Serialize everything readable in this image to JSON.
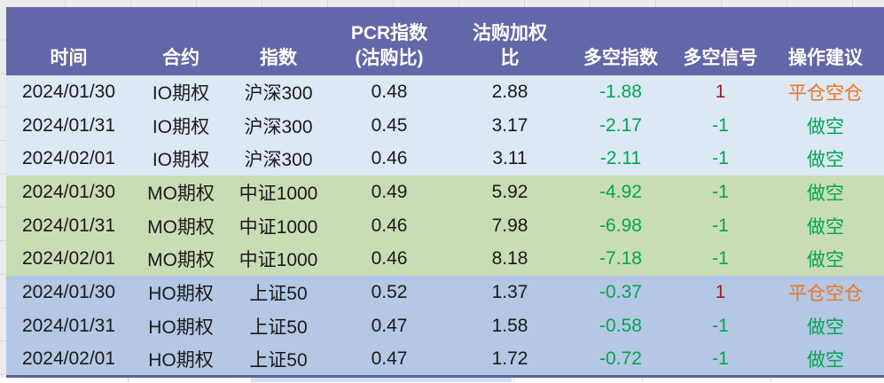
{
  "colors": {
    "header_bg": "#6366a8",
    "header_text": "#ffffff",
    "group_io_bg": "#dce9f5",
    "group_mo_bg": "#c9ddb5",
    "group_ho_bg": "#b4c7e4",
    "text_black": "#1a1a1a",
    "green": "#00a651",
    "red": "#9c1b1e",
    "orange": "#f2731f",
    "table_border": "#5f6198",
    "margin_bg": "#ececec",
    "gridline": "#d6d6d6"
  },
  "table": {
    "columns": [
      {
        "key": "time",
        "label": "时间"
      },
      {
        "key": "contract",
        "label": "合约"
      },
      {
        "key": "index",
        "label": "指数"
      },
      {
        "key": "pcr",
        "label": "PCR指数\n(沽购比)"
      },
      {
        "key": "weighted",
        "label": "沽购加权\n比"
      },
      {
        "key": "ls_index",
        "label": "多空指数"
      },
      {
        "key": "ls_signal",
        "label": "多空信号"
      },
      {
        "key": "advice",
        "label": "操作建议"
      }
    ],
    "rows": [
      {
        "group": "io",
        "cells": [
          "2024/01/30",
          "IO期权",
          "沪深300",
          "0.48",
          "2.88",
          "-1.88",
          "1",
          "平仓空仓"
        ],
        "cell_colors": [
          null,
          null,
          null,
          null,
          null,
          "green",
          "red",
          "orange"
        ]
      },
      {
        "group": "io",
        "cells": [
          "2024/01/31",
          "IO期权",
          "沪深300",
          "0.45",
          "3.17",
          "-2.17",
          "-1",
          "做空"
        ],
        "cell_colors": [
          null,
          null,
          null,
          null,
          null,
          "green",
          "green",
          "green"
        ]
      },
      {
        "group": "io",
        "cells": [
          "2024/02/01",
          "IO期权",
          "沪深300",
          "0.46",
          "3.11",
          "-2.11",
          "-1",
          "做空"
        ],
        "cell_colors": [
          null,
          null,
          null,
          null,
          null,
          "green",
          "green",
          "green"
        ]
      },
      {
        "group": "mo",
        "cells": [
          "2024/01/30",
          "MO期权",
          "中证1000",
          "0.49",
          "5.92",
          "-4.92",
          "-1",
          "做空"
        ],
        "cell_colors": [
          null,
          null,
          null,
          null,
          null,
          "green",
          "green",
          "green"
        ]
      },
      {
        "group": "mo",
        "cells": [
          "2024/01/31",
          "MO期权",
          "中证1000",
          "0.46",
          "7.98",
          "-6.98",
          "-1",
          "做空"
        ],
        "cell_colors": [
          null,
          null,
          null,
          null,
          null,
          "green",
          "green",
          "green"
        ]
      },
      {
        "group": "mo",
        "cells": [
          "2024/02/01",
          "MO期权",
          "中证1000",
          "0.46",
          "8.18",
          "-7.18",
          "-1",
          "做空"
        ],
        "cell_colors": [
          null,
          null,
          null,
          null,
          null,
          "green",
          "green",
          "green"
        ]
      },
      {
        "group": "ho",
        "cells": [
          "2024/01/30",
          "HO期权",
          "上证50",
          "0.52",
          "1.37",
          "-0.37",
          "1",
          "平仓空仓"
        ],
        "cell_colors": [
          null,
          null,
          null,
          null,
          null,
          "green",
          "red",
          "orange"
        ]
      },
      {
        "group": "ho",
        "cells": [
          "2024/01/31",
          "HO期权",
          "上证50",
          "0.47",
          "1.58",
          "-0.58",
          "-1",
          "做空"
        ],
        "cell_colors": [
          null,
          null,
          null,
          null,
          null,
          "green",
          "green",
          "green"
        ]
      },
      {
        "group": "ho",
        "cells": [
          "2024/02/01",
          "HO期权",
          "上证50",
          "0.47",
          "1.72",
          "-0.72",
          "-1",
          "做空"
        ],
        "cell_colors": [
          null,
          null,
          null,
          null,
          null,
          "green",
          "green",
          "green"
        ]
      }
    ]
  }
}
